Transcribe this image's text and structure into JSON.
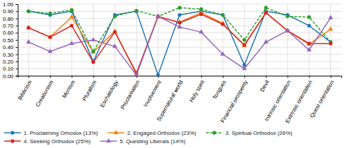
{
  "chart_data": {
    "type": "line",
    "categories": [
      "Biblicism",
      "Creationism",
      "Monism",
      "Pluralism",
      "Eschatology",
      "Proclamation",
      "Involvement",
      "Supernatural world",
      "Holy spirit",
      "Tongues",
      "Financial prosperity",
      "Devil",
      "Intrinsic orientation",
      "Extrinsic orientation",
      "Quest orientation"
    ],
    "series": [
      {
        "name": "1. Proclaiming Orhodox (13%)",
        "marker": "circle",
        "line_style": "solid",
        "values": [
          0.9,
          0.85,
          0.9,
          0.2,
          0.85,
          0.9,
          0.01,
          0.85,
          0.9,
          0.85,
          0.15,
          0.9,
          0.85,
          0.7,
          0.47
        ]
      },
      {
        "name": "2. Engaged Orthodox (23%)",
        "marker": "triangle",
        "line_style": "solid",
        "values": [
          0.67,
          0.54,
          0.82,
          0.33,
          0.62,
          0.02,
          0.82,
          0.75,
          0.88,
          0.73,
          0.42,
          0.88,
          0.63,
          0.44,
          0.65
        ]
      },
      {
        "name": "3. Spiritual Orthodox (26%)",
        "marker": "circle",
        "line_style": "dashed",
        "values": [
          0.9,
          0.87,
          0.92,
          0.34,
          0.83,
          0.91,
          0.83,
          0.95,
          0.93,
          0.85,
          0.5,
          0.95,
          0.83,
          0.82,
          0.47
        ]
      },
      {
        "name": "4. Seeking Orthodox (25%)",
        "marker": "circle",
        "line_style": "solid",
        "values": [
          0.67,
          0.54,
          0.7,
          0.19,
          0.61,
          0.04,
          0.83,
          0.74,
          0.86,
          0.72,
          0.43,
          0.88,
          0.63,
          0.45,
          0.45
        ]
      },
      {
        "name": "5. Questing Liberals (14%)",
        "marker": "triangle",
        "line_style": "solid",
        "values": [
          0.47,
          0.34,
          0.45,
          0.5,
          0.41,
          0.01,
          0.83,
          0.68,
          0.61,
          0.3,
          0.1,
          0.47,
          0.63,
          0.36,
          0.81
        ]
      }
    ],
    "ylim": [
      0.0,
      1.0
    ],
    "yticks": [
      {
        "value": 0.0,
        "label": "0.00"
      },
      {
        "value": 0.1,
        "label": "0.10"
      },
      {
        "value": 0.2,
        "label": "0.20"
      },
      {
        "value": 0.3,
        "label": "0.30"
      },
      {
        "value": 0.4,
        "label": "0.40"
      },
      {
        "value": 0.5,
        "label": "0.50"
      },
      {
        "value": 0.6,
        "label": "0.60"
      },
      {
        "value": 0.7,
        "label": "0.70"
      },
      {
        "value": 0.8,
        "label": "0.80"
      },
      {
        "value": 0.9,
        "label": "0.90"
      },
      {
        "value": 1.0,
        "label": "1.00"
      }
    ],
    "grid": true,
    "legend": "bottom"
  }
}
